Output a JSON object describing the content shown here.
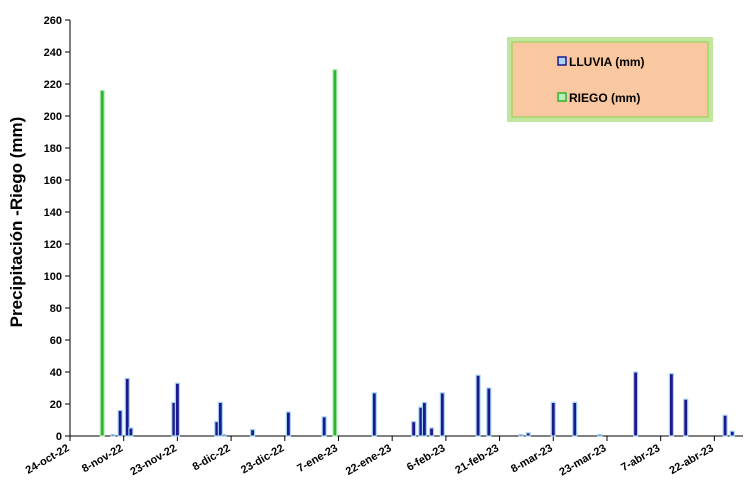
{
  "chart_data": {
    "type": "bar",
    "ylabel": "Precipitación -Riego (mm)",
    "xlabel": "",
    "ylim": [
      0,
      260
    ],
    "yticks": [
      0,
      20,
      40,
      60,
      80,
      100,
      120,
      140,
      160,
      180,
      200,
      220,
      240,
      260
    ],
    "x_start": "2022-10-24",
    "x_end": "2023-04-30",
    "x_tick_labels": [
      "24-oct-22",
      "8-nov-22",
      "23-nov-22",
      "8-dic-22",
      "23-dic-22",
      "7-ene-23",
      "22-ene-23",
      "6-feb-23",
      "21-feb-23",
      "8-mar-23",
      "23-mar-23",
      "7-abr-23",
      "22-abr-23"
    ],
    "x_tick_dates": [
      "2022-10-24",
      "2022-11-08",
      "2022-11-23",
      "2022-12-08",
      "2022-12-23",
      "2023-01-07",
      "2023-01-22",
      "2023-02-06",
      "2023-02-21",
      "2023-03-08",
      "2023-03-23",
      "2023-04-07",
      "2023-04-22"
    ],
    "legend": {
      "placement": "top-right",
      "background": "#f9c8a0",
      "glow": "#8fd14f"
    },
    "series": [
      {
        "name": "LLUVIA (mm)",
        "color": "#1a1a8c",
        "edge": "#a9d4f5",
        "points": [
          {
            "date": "2022-11-05",
            "value": 1
          },
          {
            "date": "2022-11-07",
            "value": 16
          },
          {
            "date": "2022-11-09",
            "value": 36
          },
          {
            "date": "2022-11-10",
            "value": 5
          },
          {
            "date": "2022-11-22",
            "value": 21
          },
          {
            "date": "2022-11-23",
            "value": 33
          },
          {
            "date": "2022-12-04",
            "value": 9
          },
          {
            "date": "2022-12-05",
            "value": 21
          },
          {
            "date": "2022-12-06",
            "value": 1
          },
          {
            "date": "2022-12-14",
            "value": 4
          },
          {
            "date": "2022-12-24",
            "value": 15
          },
          {
            "date": "2023-01-03",
            "value": 12
          },
          {
            "date": "2023-01-17",
            "value": 27
          },
          {
            "date": "2023-01-28",
            "value": 9
          },
          {
            "date": "2023-01-30",
            "value": 18
          },
          {
            "date": "2023-01-31",
            "value": 21
          },
          {
            "date": "2023-02-02",
            "value": 5
          },
          {
            "date": "2023-02-05",
            "value": 27
          },
          {
            "date": "2023-02-15",
            "value": 38
          },
          {
            "date": "2023-02-18",
            "value": 30
          },
          {
            "date": "2023-02-27",
            "value": 1
          },
          {
            "date": "2023-03-01",
            "value": 2
          },
          {
            "date": "2023-03-08",
            "value": 21
          },
          {
            "date": "2023-03-14",
            "value": 21
          },
          {
            "date": "2023-03-21",
            "value": 1
          },
          {
            "date": "2023-03-31",
            "value": 40
          },
          {
            "date": "2023-04-10",
            "value": 39
          },
          {
            "date": "2023-04-14",
            "value": 23
          },
          {
            "date": "2023-04-25",
            "value": 13
          },
          {
            "date": "2023-04-27",
            "value": 3
          }
        ]
      },
      {
        "name": "RIEGO (mm)",
        "color": "#2db52d",
        "edge": "#b8ecb8",
        "points": [
          {
            "date": "2022-11-02",
            "value": 216
          },
          {
            "date": "2023-01-06",
            "value": 229
          }
        ]
      }
    ]
  }
}
